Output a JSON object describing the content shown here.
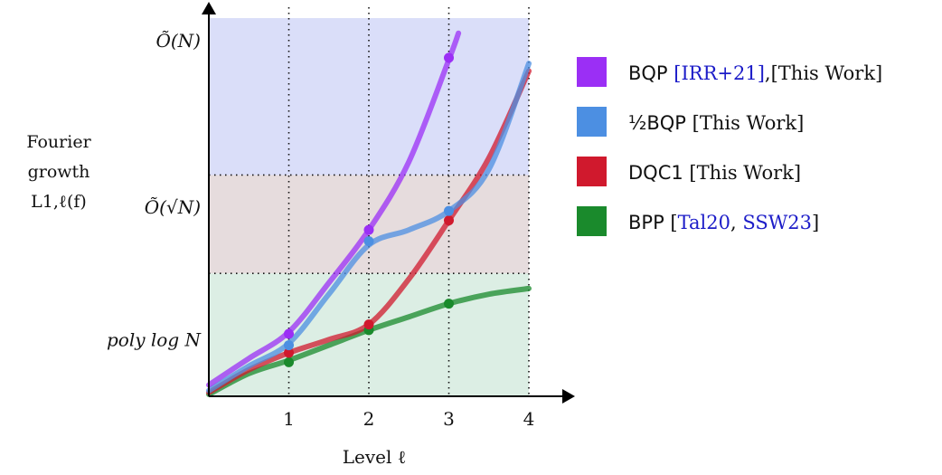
{
  "chart_data": {
    "type": "line",
    "xlabel": "Level ℓ",
    "ylabel_lines": [
      "Fourier",
      "growth",
      "L1,ℓ(f)"
    ],
    "x_ticks": [
      {
        "value": 1,
        "label": "1"
      },
      {
        "value": 2,
        "label": "2"
      },
      {
        "value": 3,
        "label": "3"
      },
      {
        "value": 4,
        "label": "4"
      }
    ],
    "xlim": [
      0,
      4
    ],
    "ylim": [
      0,
      1
    ],
    "y_ticks": [
      "poly log N",
      "Õ(√N)",
      "Õ(N)"
    ],
    "y_tick_levels": [
      0.15,
      0.5,
      0.94
    ],
    "regions": [
      {
        "y0": 0.0,
        "y1": 0.325,
        "color": "#dceee4"
      },
      {
        "y0": 0.325,
        "y1": 0.585,
        "color": "#e6dcdd"
      },
      {
        "y0": 0.585,
        "y1": 1.0,
        "color": "#dadef9"
      }
    ],
    "grid": "dotted",
    "legend_position": "right",
    "series": [
      {
        "name": "BQP",
        "citation_pre": " ",
        "citations": [
          "[IRR+21]"
        ],
        "citation_post": ",[This Work]",
        "color": "#9b2ff5",
        "curve": [
          [
            0,
            0.03
          ],
          [
            0.5,
            0.1
          ],
          [
            1,
            0.17
          ],
          [
            1.5,
            0.3
          ],
          [
            2,
            0.44
          ],
          [
            2.5,
            0.62
          ],
          [
            3,
            0.89
          ],
          [
            3.12,
            0.96
          ]
        ],
        "points": [
          [
            1,
            0.165
          ],
          [
            2,
            0.44
          ],
          [
            3,
            0.895
          ]
        ]
      },
      {
        "name": "½BQP",
        "citation_pre": " [This Work]",
        "citations": [],
        "citation_post": "",
        "color": "#4c8fe2",
        "curve": [
          [
            0,
            0.015
          ],
          [
            0.5,
            0.08
          ],
          [
            1,
            0.14
          ],
          [
            1.5,
            0.27
          ],
          [
            2,
            0.4
          ],
          [
            2.5,
            0.44
          ],
          [
            3,
            0.49
          ],
          [
            3.5,
            0.6
          ],
          [
            4,
            0.88
          ]
        ],
        "points": [
          [
            1,
            0.135
          ],
          [
            2,
            0.41
          ],
          [
            3,
            0.49
          ]
        ]
      },
      {
        "name": "DQC1",
        "citation_pre": " [This Work]",
        "citations": [],
        "citation_post": "",
        "color": "#d0192d",
        "curve": [
          [
            0,
            0.01
          ],
          [
            0.5,
            0.07
          ],
          [
            1,
            0.115
          ],
          [
            1.5,
            0.15
          ],
          [
            2,
            0.19
          ],
          [
            2.5,
            0.31
          ],
          [
            3,
            0.465
          ],
          [
            3.5,
            0.63
          ],
          [
            4,
            0.86
          ]
        ],
        "points": [
          [
            1,
            0.115
          ],
          [
            2,
            0.19
          ],
          [
            3,
            0.465
          ]
        ]
      },
      {
        "name": "BPP",
        "citation_pre": " [",
        "citations": [
          "Tal20",
          "SSW23"
        ],
        "citation_post": "]",
        "color": "#1a8a2c",
        "curve": [
          [
            0,
            0.005
          ],
          [
            0.5,
            0.06
          ],
          [
            1,
            0.095
          ],
          [
            1.5,
            0.135
          ],
          [
            2,
            0.175
          ],
          [
            2.5,
            0.21
          ],
          [
            3,
            0.245
          ],
          [
            3.5,
            0.27
          ],
          [
            4,
            0.285
          ]
        ],
        "points": [
          [
            1,
            0.09
          ],
          [
            2,
            0.175
          ],
          [
            3,
            0.245
          ]
        ]
      }
    ]
  }
}
